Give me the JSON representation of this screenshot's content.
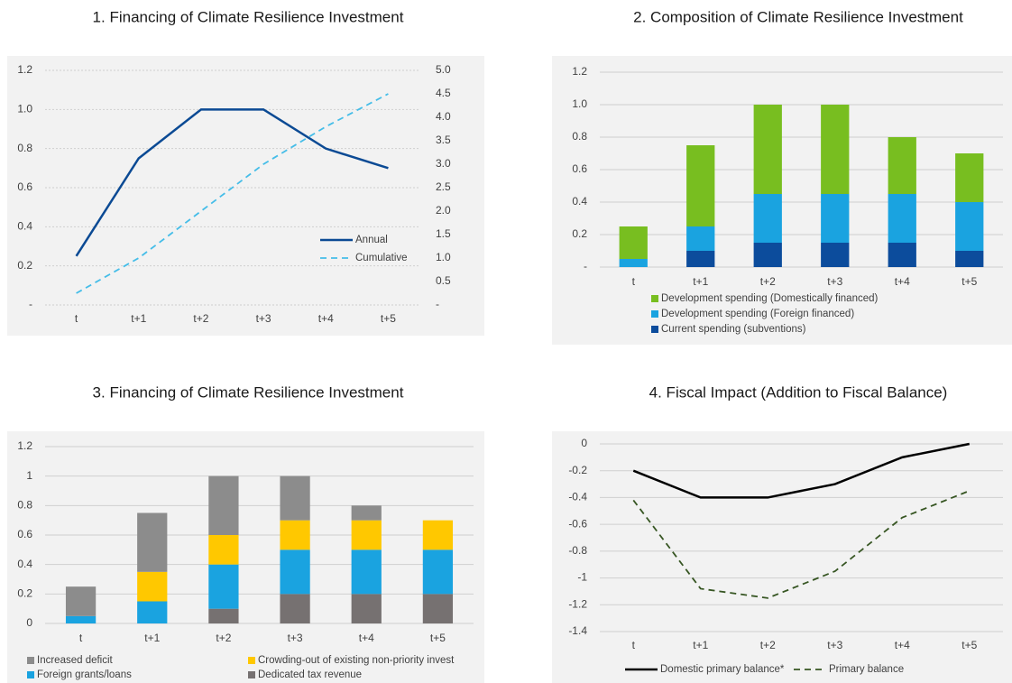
{
  "chart_data": [
    {
      "type": "line",
      "title": "1. Financing of Climate Resilience Investment",
      "categories": [
        "t",
        "t+1",
        "t+2",
        "t+3",
        "t+4",
        "t+5"
      ],
      "ylim": [
        0,
        1.2
      ],
      "yticks": [
        {
          "value": 0,
          "label": "-"
        },
        0.2,
        0.4,
        0.6,
        0.8,
        {
          "value": 1,
          "label": "1.0"
        },
        1.2
      ],
      "y2lim": [
        0,
        5
      ],
      "y2ticks": [
        {
          "value": 0,
          "label": "-"
        },
        0.5,
        {
          "value": 1,
          "label": "1.0"
        },
        1.5,
        {
          "value": 2,
          "label": "2.0"
        },
        2.5,
        {
          "value": 3,
          "label": "3.0"
        },
        3.5,
        {
          "value": 4,
          "label": "4.0"
        },
        4.5,
        {
          "value": 5,
          "label": "5.0"
        }
      ],
      "grid": true,
      "legend": "lower right",
      "series": [
        {
          "name": "Annual",
          "color": "#0b4a94",
          "line_style": "solid",
          "values": [
            0.25,
            0.75,
            1.0,
            1.0,
            0.8,
            0.7
          ]
        },
        {
          "name": "Cumulative",
          "color": "#45bde8",
          "line_style": "dashed",
          "axis": "y2",
          "values": [
            0.25,
            1.0,
            2.0,
            3.0,
            3.8,
            4.5
          ]
        }
      ]
    },
    {
      "type": "bar",
      "stacked": true,
      "title": "2. Composition of Climate Resilience Investment",
      "categories": [
        "t",
        "t+1",
        "t+2",
        "t+3",
        "t+4",
        "t+5"
      ],
      "ylim": [
        0,
        1.2
      ],
      "yticks": [
        {
          "value": 0,
          "label": "-"
        },
        0.2,
        0.4,
        0.6,
        0.8,
        {
          "value": 1,
          "label": "1.0"
        },
        1.2
      ],
      "grid": true,
      "legend": "bottom",
      "series": [
        {
          "name": "Development spending (Domestically financed)",
          "color": "#78be20",
          "values": [
            0.2,
            0.5,
            0.55,
            0.55,
            0.35,
            0.3
          ]
        },
        {
          "name": "Development spending (Foreign financed)",
          "color": "#1aa3e0",
          "values": [
            0.05,
            0.15,
            0.3,
            0.3,
            0.3,
            0.3
          ]
        },
        {
          "name": "Current spending (subventions)",
          "color": "#0c4c9c",
          "values": [
            0,
            0.1,
            0.15,
            0.15,
            0.15,
            0.1
          ]
        }
      ]
    },
    {
      "type": "bar",
      "stacked": true,
      "title": "3. Financing of Climate Resilience Investment",
      "categories": [
        "t",
        "t+1",
        "t+2",
        "t+3",
        "t+4",
        "t+5"
      ],
      "ylim": [
        0,
        1.2
      ],
      "yticks": [
        0,
        0.2,
        0.4,
        0.6,
        0.8,
        1,
        1.2
      ],
      "grid": true,
      "legend": "bottom",
      "series": [
        {
          "name": "Increased deficit",
          "color": "#8c8c8c",
          "values": [
            0.2,
            0.4,
            0.4,
            0.3,
            0.1,
            0
          ]
        },
        {
          "name": "Crowding-out of existing non-priority invest",
          "color": "#ffc800",
          "values": [
            0,
            0.2,
            0.2,
            0.2,
            0.2,
            0.2
          ]
        },
        {
          "name": "Foreign grants/loans",
          "color": "#1aa3e0",
          "values": [
            0.05,
            0.15,
            0.3,
            0.3,
            0.3,
            0.3
          ]
        },
        {
          "name": "Dedicated tax revenue",
          "color": "#767171",
          "values": [
            0,
            0,
            0.1,
            0.2,
            0.2,
            0.2
          ]
        }
      ]
    },
    {
      "type": "line",
      "title": "4. Fiscal Impact (Addition to Fiscal Balance)",
      "categories": [
        "t",
        "t+1",
        "t+2",
        "t+3",
        "t+4",
        "t+5"
      ],
      "ylim": [
        -1.4,
        0
      ],
      "yticks": [
        0,
        -0.2,
        -0.4,
        -0.6,
        -0.8,
        -1,
        -1.2,
        -1.4
      ],
      "grid": true,
      "legend": "bottom",
      "series": [
        {
          "name": "Domestic primary balance*",
          "color": "#000000",
          "line_style": "solid",
          "values": [
            -0.2,
            -0.4,
            -0.4,
            -0.3,
            -0.1,
            0
          ]
        },
        {
          "name": "Primary balance",
          "color": "#375623",
          "line_style": "dashed",
          "values": [
            -0.42,
            -1.08,
            -1.15,
            -0.95,
            -0.55,
            -0.35
          ]
        }
      ]
    }
  ]
}
